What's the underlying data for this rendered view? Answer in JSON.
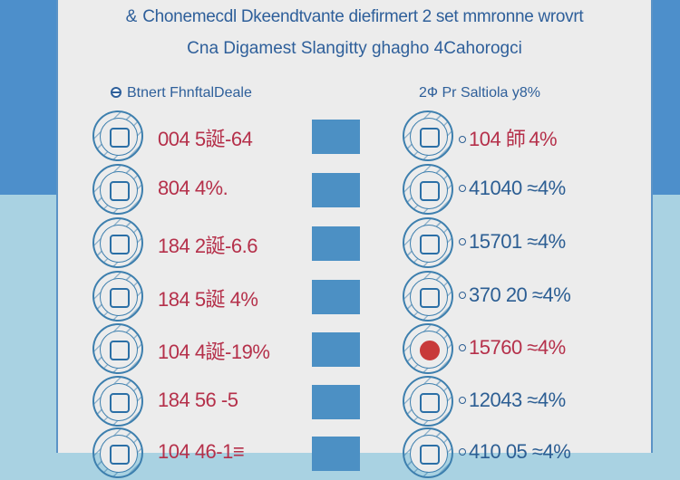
{
  "header": {
    "title": "&  Chonemecdl Dkeendtvante diefirmert 2 set mmronne wrovrt",
    "subtitle": "Cna Digamest Slangitty ghagho 4Cahorogci"
  },
  "columns": {
    "left_heading": "Btnert FhnftalDeale",
    "right_heading": "2Ф Pr Saltiola y8%"
  },
  "rows": [
    {
      "left_icon": "gauge-icon",
      "left": "004 5誕-64",
      "right_icon": "monitor-icon",
      "right": "104 師 4%",
      "right_color": "red"
    },
    {
      "left_icon": "camera-icon",
      "left": "804 4%.",
      "right_icon": "document-icon",
      "right": "41040 ≈4%",
      "right_color": "blue"
    },
    {
      "left_icon": "molecule-icon",
      "left": "184 2誕-6.6",
      "right_icon": "grapes-icon",
      "right": "15701 ≈4%",
      "right_color": "blue"
    },
    {
      "left_icon": "hand-icon",
      "left": "184 5誕 4%",
      "right_icon": "hand-drawn-icon",
      "right": "370 20 ≈4%",
      "right_color": "blue"
    },
    {
      "left_icon": "bar-chart-icon",
      "left": "104 4誕-19%",
      "right_icon": "heart-badge-icon",
      "right": "15760 ≈4%",
      "right_color": "red"
    },
    {
      "left_icon": "clipboard-icon",
      "left": "184 56 -5",
      "right_icon": "globe-icon",
      "right": "12043 ≈4%",
      "right_color": "blue"
    },
    {
      "left_icon": "card-icon",
      "left": "104 46-1≡",
      "right_icon": "lamp-icon",
      "right": "410 05 ≈4%",
      "right_color": "blue"
    }
  ],
  "colors": {
    "accent_blue": "#4c90c4",
    "value_red": "#b5304a",
    "text_blue": "#2c5e93",
    "background_top": "#4d8fcb",
    "background_bottom": "#a9d2e2"
  }
}
